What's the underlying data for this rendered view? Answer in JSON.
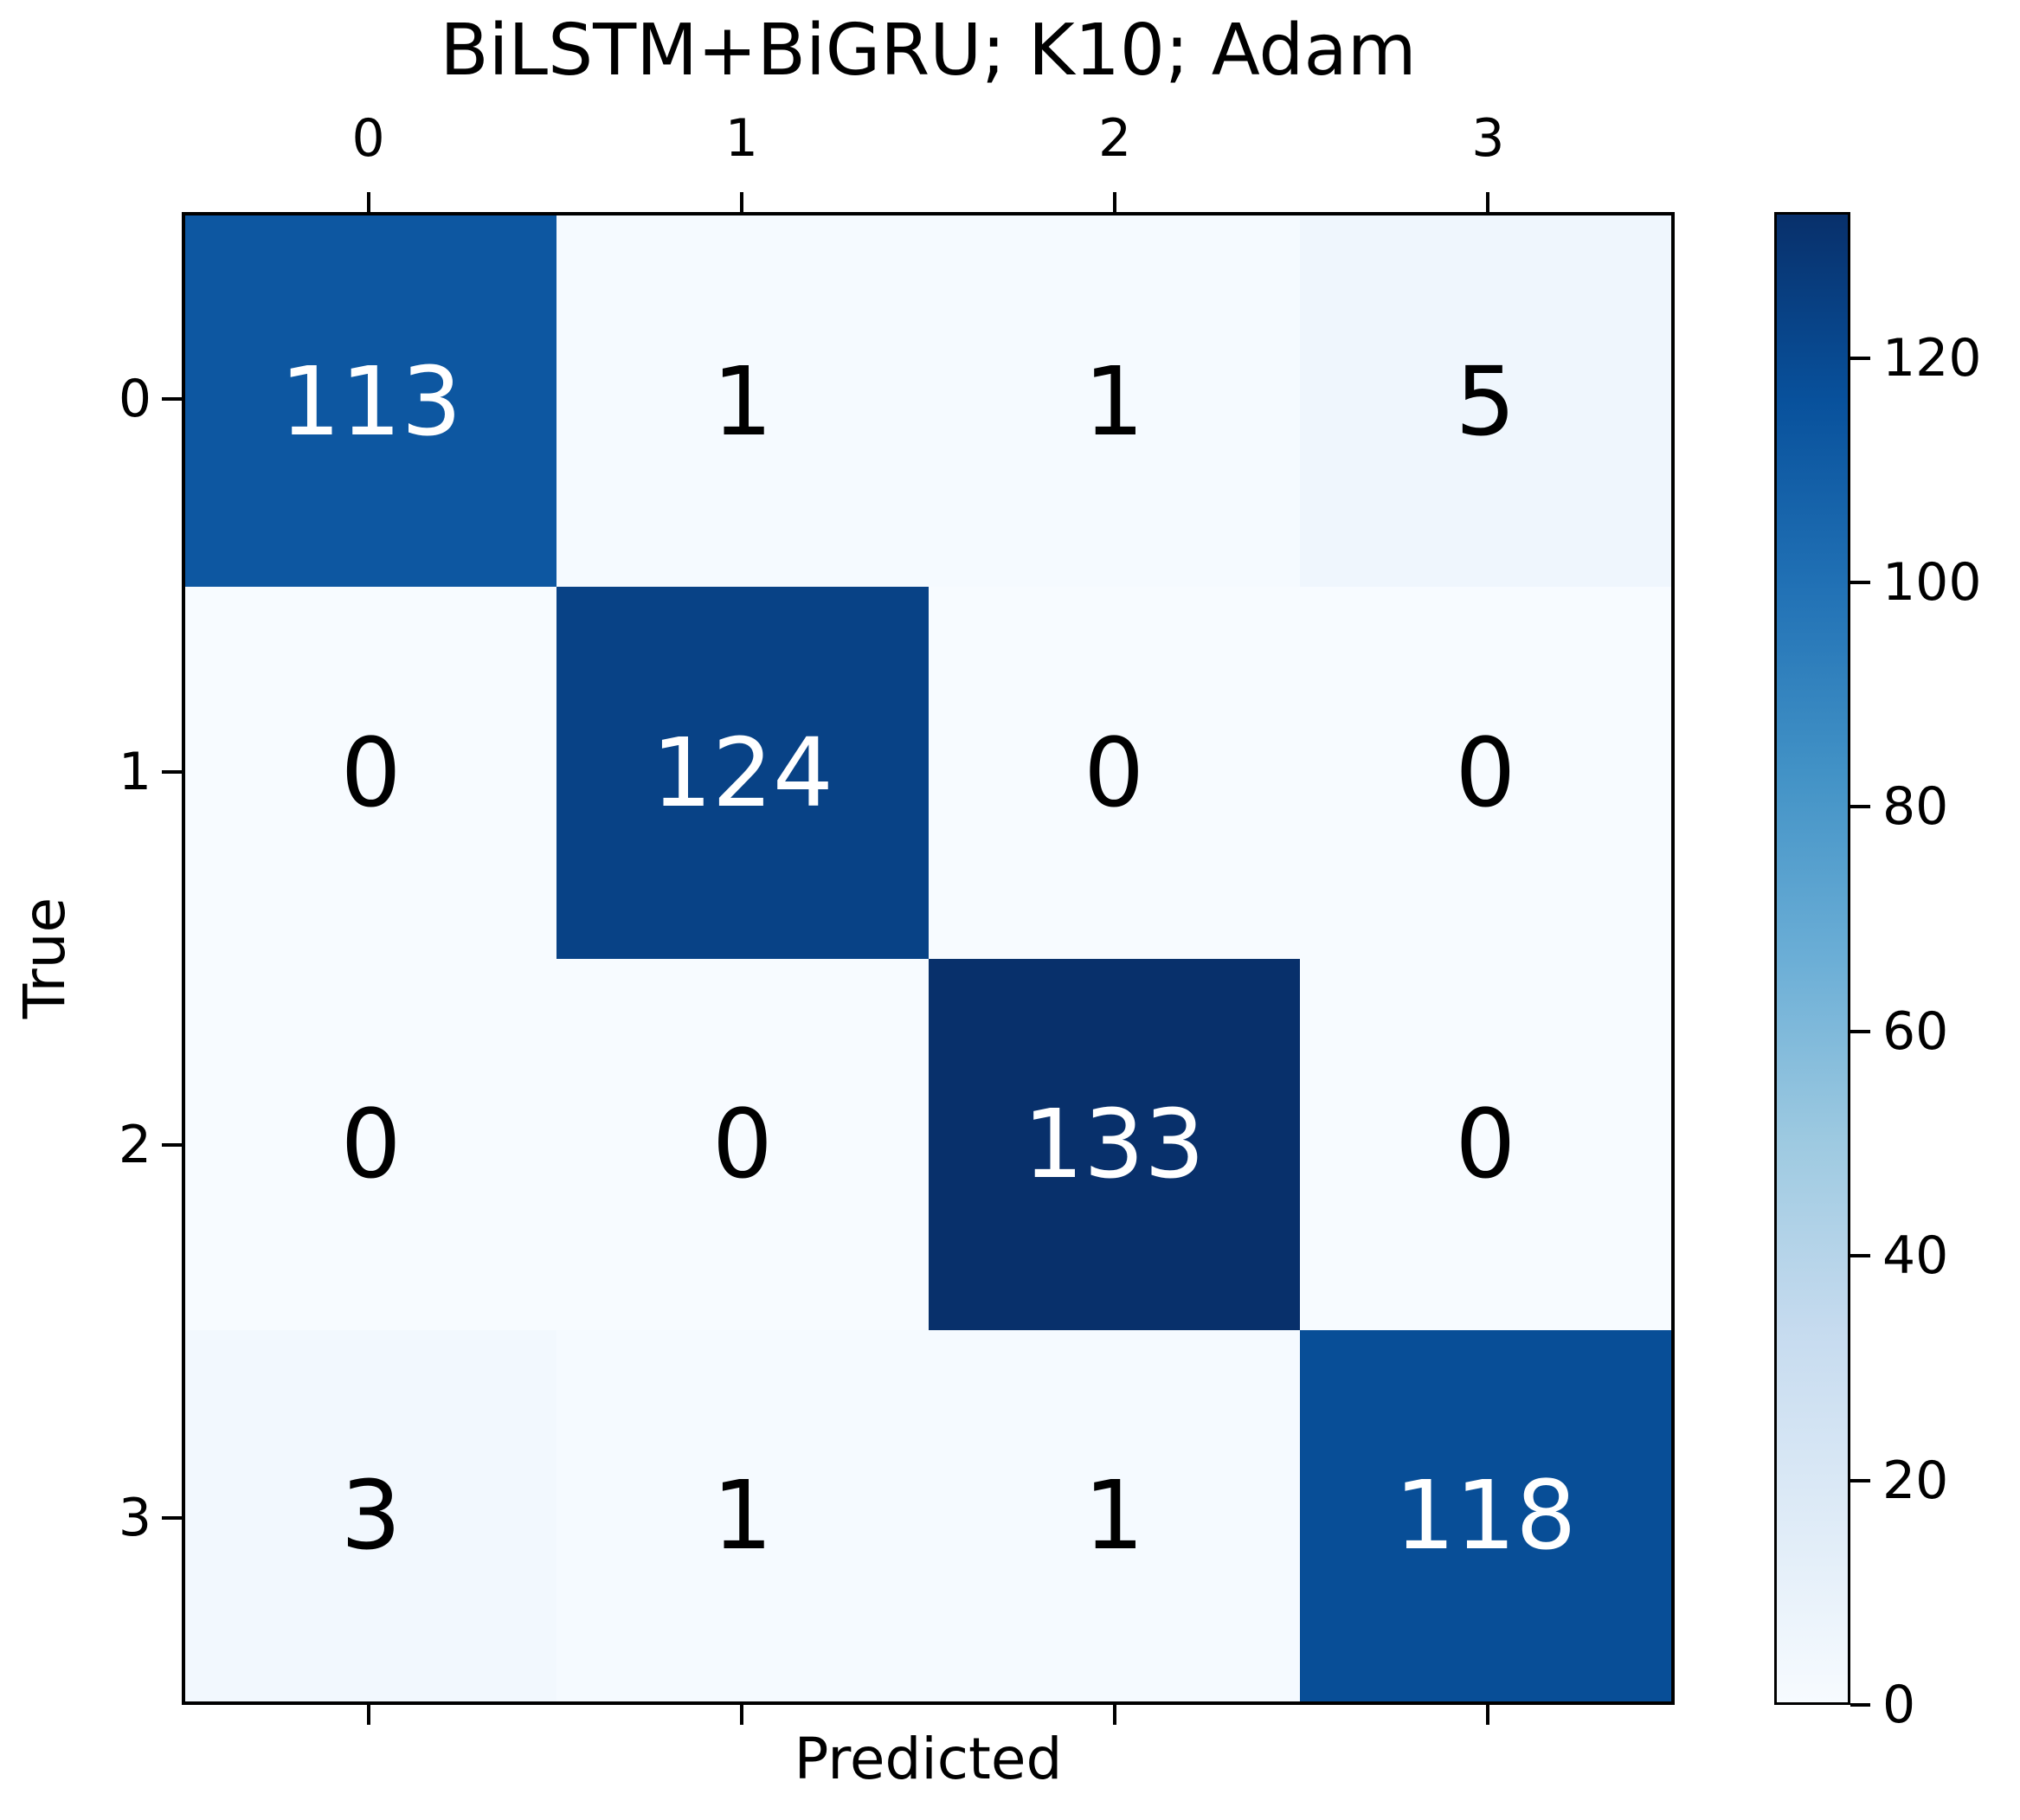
{
  "chart_data": {
    "type": "heatmap",
    "title": "BiLSTM+BiGRU; K10; Adam",
    "xlabel": "Predicted",
    "ylabel": "True",
    "x_tick_labels": [
      "0",
      "1",
      "2",
      "3"
    ],
    "y_tick_labels": [
      "0",
      "1",
      "2",
      "3"
    ],
    "matrix": [
      [
        113,
        1,
        1,
        5
      ],
      [
        0,
        124,
        0,
        0
      ],
      [
        0,
        0,
        133,
        0
      ],
      [
        3,
        1,
        1,
        118
      ]
    ],
    "vmin": 0,
    "vmax": 133,
    "colormap": "Blues",
    "colorbar_tick_values": [
      0,
      20,
      40,
      60,
      80,
      100,
      120
    ],
    "colorbar_tick_labels": [
      "0",
      "20",
      "40",
      "60",
      "80",
      "100",
      "120"
    ],
    "colorbar_position": "right",
    "grid": false,
    "x_axis_labels_position": "top",
    "annotation_color_dark_cells": "#ffffff",
    "annotation_color_light_cells": "#000000"
  },
  "colors": {
    "background": "#ffffff",
    "spine": "#000000",
    "text": "#000000",
    "blues_colormap_anchors": [
      "#f7fbff",
      "#deebf7",
      "#c6dbef",
      "#9ecae1",
      "#6baed6",
      "#4292c6",
      "#2171b5",
      "#08519c",
      "#08306b"
    ]
  }
}
